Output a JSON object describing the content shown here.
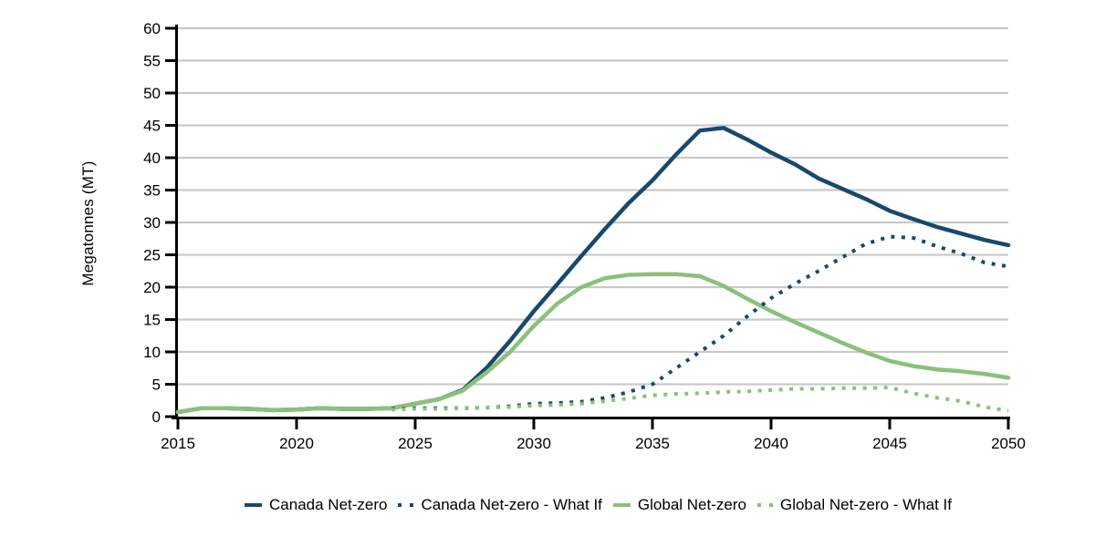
{
  "chart_data": {
    "type": "line",
    "title": "",
    "xlabel": "",
    "ylabel": "Megatonnes (MT)",
    "x_start": 2015,
    "x_end": 2050,
    "xlim": [
      2015,
      2050
    ],
    "ylim": [
      0,
      60
    ],
    "xticks": [
      2015,
      2020,
      2025,
      2030,
      2035,
      2040,
      2045,
      2050
    ],
    "yticks": [
      0,
      5,
      10,
      15,
      20,
      25,
      30,
      35,
      40,
      45,
      50,
      55,
      60
    ],
    "grid": "horizontal",
    "grid_color": "#C9C9C9",
    "axis_color": "#000000",
    "legend_position": "bottom",
    "series": [
      {
        "name": "Canada Net-zero",
        "color": "#17496D",
        "style": "solid",
        "values": [
          0.7,
          1.3,
          1.3,
          1.2,
          1.0,
          1.1,
          1.3,
          1.2,
          1.2,
          1.3,
          2.0,
          2.7,
          4.1,
          7.5,
          11.7,
          16.3,
          20.5,
          24.8,
          29.0,
          33.0,
          36.5,
          40.5,
          44.2,
          44.6,
          42.8,
          40.8,
          39.0,
          36.8,
          35.2,
          33.6,
          31.8,
          30.5,
          29.3,
          28.3,
          27.3,
          26.5
        ]
      },
      {
        "name": "Canada Net-zero - What If",
        "color": "#17496D",
        "style": "dotted",
        "values": [
          null,
          null,
          null,
          null,
          null,
          null,
          null,
          null,
          null,
          1.2,
          1.3,
          1.3,
          1.3,
          1.4,
          1.6,
          2.0,
          2.1,
          2.3,
          2.9,
          3.8,
          5.0,
          7.5,
          10.0,
          12.5,
          15.5,
          18.3,
          20.5,
          22.5,
          24.6,
          26.7,
          27.8,
          27.6,
          26.3,
          25.2,
          23.8,
          23.2
        ]
      },
      {
        "name": "Global Net-zero",
        "color": "#8CC07A",
        "style": "solid",
        "values": [
          0.7,
          1.3,
          1.3,
          1.2,
          1.0,
          1.1,
          1.3,
          1.2,
          1.2,
          1.3,
          2.0,
          2.7,
          4.0,
          6.8,
          10.0,
          14.0,
          17.5,
          20.0,
          21.4,
          21.9,
          22.0,
          22.0,
          21.7,
          20.2,
          18.2,
          16.3,
          14.6,
          13.0,
          11.4,
          9.9,
          8.6,
          7.8,
          7.3,
          7.0,
          6.6,
          6.0
        ]
      },
      {
        "name": "Global Net-zero - What If",
        "color": "#8CC07A",
        "style": "dotted",
        "values": [
          null,
          null,
          null,
          null,
          null,
          null,
          null,
          null,
          null,
          1.1,
          1.2,
          1.2,
          1.3,
          1.4,
          1.5,
          1.7,
          1.8,
          2.0,
          2.4,
          2.8,
          3.3,
          3.5,
          3.6,
          3.8,
          3.9,
          4.1,
          4.3,
          4.3,
          4.4,
          4.4,
          4.5,
          3.6,
          2.9,
          2.4,
          1.5,
          0.9
        ]
      }
    ]
  }
}
